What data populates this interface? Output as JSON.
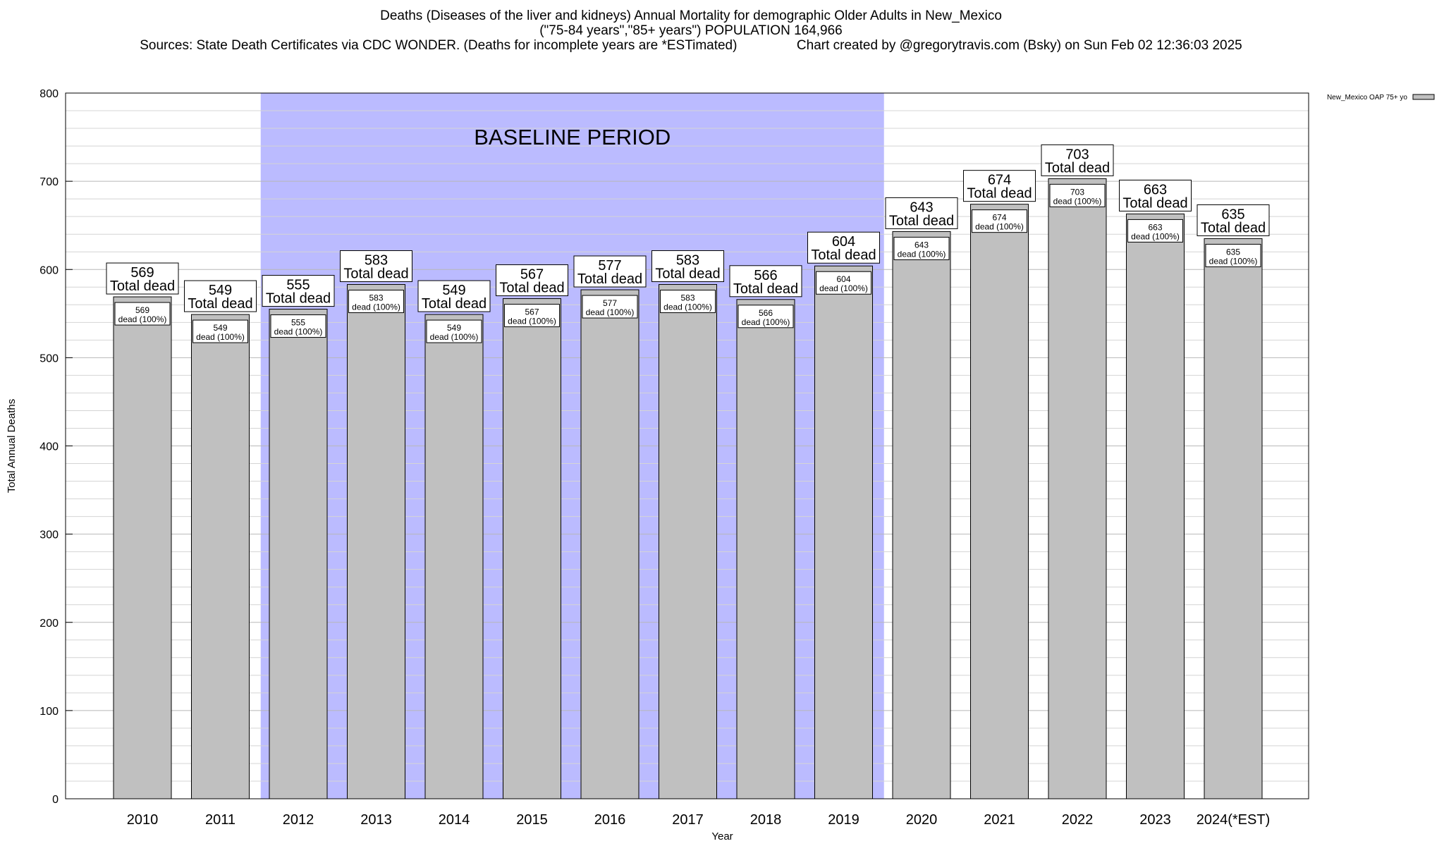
{
  "header": {
    "title_line1": "Deaths (Diseases of the liver and kidneys) Annual Mortality for demographic Older Adults in New_Mexico",
    "title_line2": "(\"75-84 years\",\"85+ years\") POPULATION 164,966",
    "title_line3": "Sources: State Death Certificates via CDC WONDER. (Deaths for incomplete years are *ESTimated)                Chart created by @gregorytravis.com (Bsky) on Sun Feb 02 12:36:03 2025"
  },
  "chart_data": {
    "type": "bar",
    "title": "Deaths (Diseases of the liver and kidneys) Annual Mortality for demographic Older Adults in New_Mexico",
    "subtitle": "(\"75-84 years\",\"85+ years\") POPULATION 164,966",
    "xlabel": "Year",
    "ylabel": "Total Annual Deaths",
    "ylim": [
      0,
      800
    ],
    "yticks": [
      0,
      100,
      200,
      300,
      400,
      500,
      600,
      700,
      800
    ],
    "grid": true,
    "legend_position": "top-right",
    "categories": [
      "2010",
      "2011",
      "2012",
      "2013",
      "2014",
      "2015",
      "2016",
      "2017",
      "2018",
      "2019",
      "2020",
      "2021",
      "2022",
      "2023",
      "2024(*EST)"
    ],
    "series": [
      {
        "name": "New_Mexico OAP 75+ yo",
        "values": [
          569,
          549,
          555,
          583,
          549,
          567,
          577,
          583,
          566,
          604,
          643,
          674,
          703,
          663,
          635
        ],
        "color": "#c0c0c0"
      }
    ],
    "outer_label_suffix": "Total dead",
    "inner_label_suffix": "dead (100%)",
    "baseline_period": {
      "label": "BASELINE PERIOD",
      "start": "2012",
      "end": "2019",
      "color": "#bbbbff"
    }
  }
}
